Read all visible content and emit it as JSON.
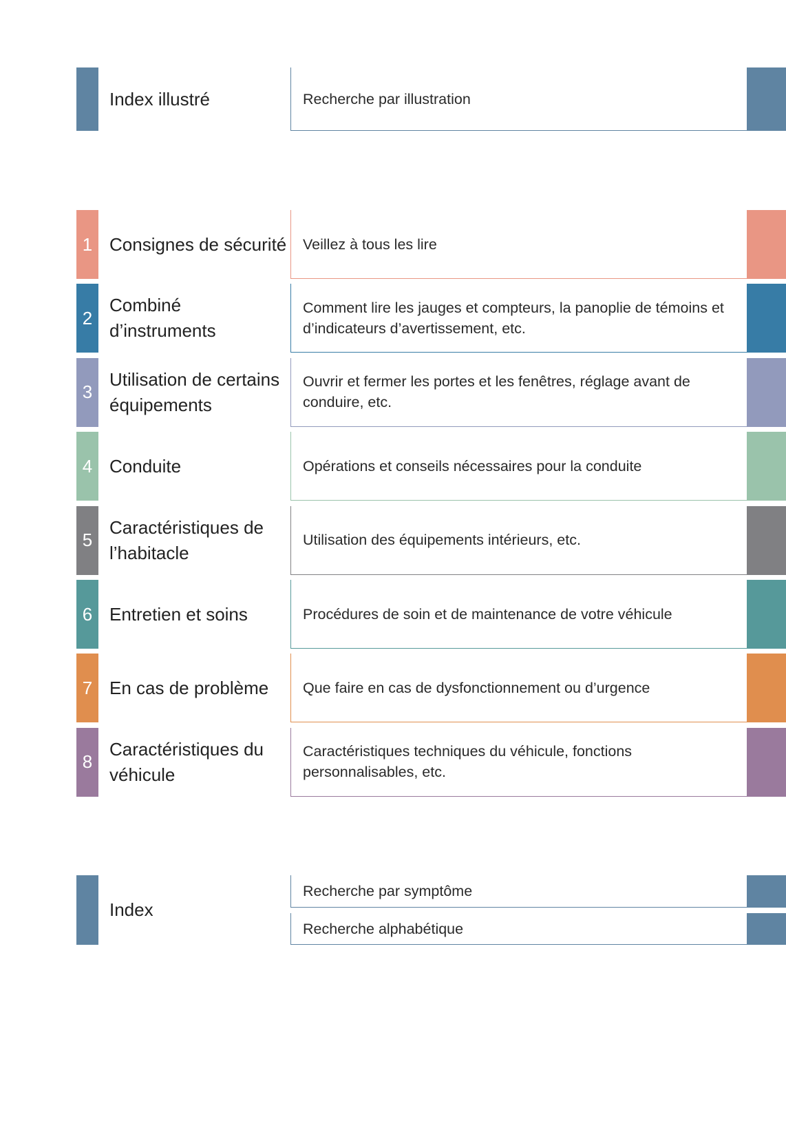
{
  "illustrated_index": {
    "title": "Index illustré",
    "description": "Recherche par illustration",
    "color": "#5f84a2"
  },
  "chapters": [
    {
      "number": "1",
      "title": "Consignes de sécurité",
      "description": "Veillez à tous les lire",
      "color": "#e99684"
    },
    {
      "number": "2",
      "title": "Combiné d’instruments",
      "description": "Comment lire les jauges et compteurs, la panoplie de témoins et d’indicateurs d’avertissement, etc.",
      "color": "#377ca6"
    },
    {
      "number": "3",
      "title": "Utilisation de certains équipements",
      "description": "Ouvrir et fermer les portes et les fenêtres, réglage avant de conduire, etc.",
      "color": "#929abc"
    },
    {
      "number": "4",
      "title": "Conduite",
      "description": "Opérations et conseils nécessaires pour la conduite",
      "color": "#9ac3ab"
    },
    {
      "number": "5",
      "title": "Caractéristiques de l’habitacle",
      "description": "Utilisation des équipements intérieurs, etc.",
      "color": "#808083"
    },
    {
      "number": "6",
      "title": "Entretien et soins",
      "description": "Procédures de soin et de maintenance de votre véhicule",
      "color": "#56999a"
    },
    {
      "number": "7",
      "title": "En cas de problème",
      "description": "Que faire en cas de dysfonctionnement ou d’urgence",
      "color": "#e08e4e"
    },
    {
      "number": "8",
      "title": "Caractéristiques du véhicule",
      "description": "Caractéristiques techniques du véhicule, fonctions personnalisables, etc.",
      "color": "#9a7a9d"
    }
  ],
  "index": {
    "title": "Index",
    "items": [
      "Recherche par symptôme",
      "Recherche alphabétique"
    ],
    "color": "#5f84a2"
  }
}
